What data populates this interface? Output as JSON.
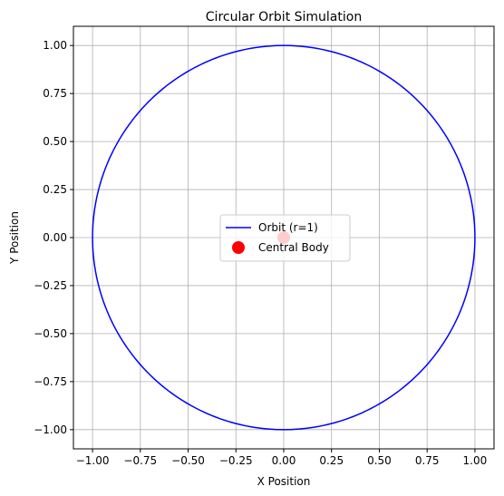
{
  "chart_data": {
    "type": "line",
    "title": "Circular Orbit Simulation",
    "xlabel": "X Position",
    "ylabel": "Y Position",
    "xlim": [
      -1.1,
      1.1
    ],
    "ylim": [
      -1.1,
      1.1
    ],
    "xticks": [
      -1.0,
      -0.75,
      -0.5,
      -0.25,
      0.0,
      0.25,
      0.5,
      0.75,
      1.0
    ],
    "yticks": [
      -1.0,
      -0.75,
      -0.5,
      -0.25,
      0.0,
      0.25,
      0.5,
      0.75,
      1.0
    ],
    "xtick_labels": [
      "−1.00",
      "−0.75",
      "−0.50",
      "−0.25",
      "0.00",
      "0.25",
      "0.50",
      "0.75",
      "1.00"
    ],
    "ytick_labels": [
      "−1.00",
      "−0.75",
      "−0.50",
      "−0.25",
      "0.00",
      "0.25",
      "0.50",
      "0.75",
      "1.00"
    ],
    "grid": true,
    "legend_placement": "center",
    "series": [
      {
        "name": "Orbit (r=1)",
        "kind": "circle",
        "center": [
          0,
          0
        ],
        "radius": 1,
        "color": "#0000ff"
      },
      {
        "name": "Central Body",
        "kind": "point",
        "x": [
          0
        ],
        "y": [
          0
        ],
        "color": "#ff0000"
      }
    ]
  }
}
